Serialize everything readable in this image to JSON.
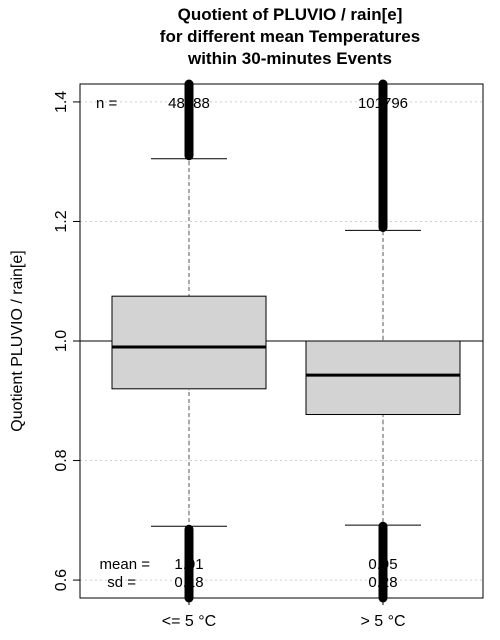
{
  "chart_data": {
    "type": "box",
    "title_lines": [
      "Quotient of PLUVIO / rain[e]",
      "for different mean Temperatures",
      "within 30-minutes Events"
    ],
    "xlabel": "",
    "ylabel": "Quotient PLUVIO / rain[e]",
    "categories": [
      "<= 5 °C",
      "> 5 °C"
    ],
    "ylim": [
      0.57,
      1.43
    ],
    "yticks": [
      0.6,
      0.8,
      1.0,
      1.2,
      1.4
    ],
    "ytick_labels": [
      "0.6",
      "0.8",
      "1.0",
      "1.2",
      "1.4"
    ],
    "grid": true,
    "reference_line": 1.0,
    "labels": {
      "n": "n =",
      "mean": "mean =",
      "sd": "sd ="
    },
    "boxes": [
      {
        "category": "<= 5 °C",
        "n": "48688",
        "mean": "1.01",
        "sd": "0.18",
        "whisker_low": 0.69,
        "q1": 0.92,
        "median": 0.99,
        "q3": 1.075,
        "whisker_high": 1.305,
        "outliers_high_from": 1.31,
        "outliers_low_to": 0.685
      },
      {
        "category": "> 5 °C",
        "n": "101796",
        "mean": "0.95",
        "sd": "0.28",
        "whisker_low": 0.692,
        "q1": 0.877,
        "median": 0.943,
        "q3": 1.0,
        "whisker_high": 1.185,
        "outliers_high_from": 1.19,
        "outliers_low_to": 0.69
      }
    ],
    "colors": {
      "box_fill": "#d3d3d3",
      "grid": "#cfcfcf",
      "outlier": "#000000"
    }
  }
}
